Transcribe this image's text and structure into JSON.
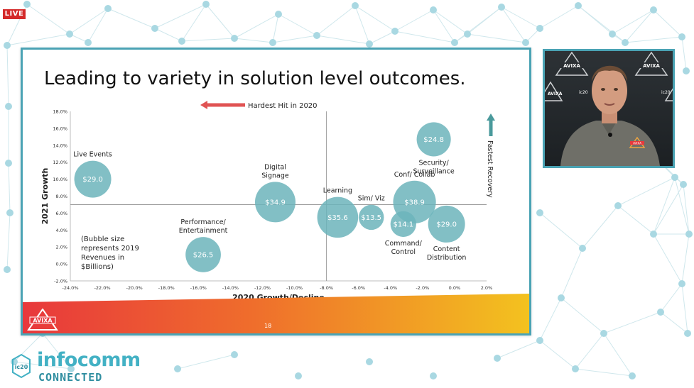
{
  "live_badge": "LIVE",
  "slide": {
    "title": "Leading to variety in solution level outcomes.",
    "page_number": "18",
    "footer_logo_text": "AVIXA"
  },
  "webcam": {
    "wall_logos": [
      "AVIXA",
      "ic20"
    ],
    "shirt_logo": "AVIXA"
  },
  "brand": {
    "badge": "ic20",
    "line1": "infocomm",
    "line2": "CONNECTED"
  },
  "colors": {
    "accent_teal": "#4aa3b4",
    "bubble": "#6cb4bb",
    "arrow_red": "#e05353",
    "arrow_teal": "#4a9a9c",
    "footer_red": "#e8383c",
    "footer_yellow": "#f3c21f",
    "live_red": "#d42a2a"
  },
  "chart_data": {
    "type": "bubble",
    "xlabel": "2020 Growth/Decline",
    "ylabel": "2021 Growth",
    "xlim": [
      -24,
      2
    ],
    "ylim": [
      -2,
      18
    ],
    "x_ticks": [
      "-24.0%",
      "-22.0%",
      "-20.0%",
      "-18.0%",
      "-16.0%",
      "-14.0%",
      "-12.0%",
      "-10.0%",
      "-8.0%",
      "-6.0%",
      "-4.0%",
      "-2.0%",
      "0.0%",
      "2.0%"
    ],
    "x_tick_values": [
      -24,
      -22,
      -20,
      -18,
      -16,
      -14,
      -12,
      -10,
      -8,
      -6,
      -4,
      -2,
      0,
      2
    ],
    "y_ticks": [
      "-2.0%",
      "0.0%",
      "2.0%",
      "4.0%",
      "6.0%",
      "8.0%",
      "10.0%",
      "12.0%",
      "14.0%",
      "16.0%",
      "18.0%"
    ],
    "y_tick_values": [
      -2,
      0,
      2,
      4,
      6,
      8,
      10,
      12,
      14,
      16,
      18
    ],
    "divider_x": -8,
    "divider_y": 7,
    "grid": false,
    "annotations": {
      "hardest_hit": "Hardest Hit in 2020",
      "fastest_recovery": "Fastest Recovery",
      "note": [
        "(Bubble size",
        "represents 2019",
        "Revenues in",
        "$Billions)"
      ]
    },
    "bubbles": [
      {
        "name": "Live Events",
        "label_lines": [
          "Live Events"
        ],
        "label_pos": "above",
        "x": -22.6,
        "y": 10.0,
        "value": 29.0,
        "value_label": "$29.0"
      },
      {
        "name": "Performance/ Entertainment",
        "label_lines": [
          "Performance/",
          "Entertainment"
        ],
        "label_pos": "above",
        "x": -15.7,
        "y": 1.1,
        "value": 26.5,
        "value_label": "$26.5"
      },
      {
        "name": "Digital Signage",
        "label_lines": [
          "Digital",
          "Signage"
        ],
        "label_pos": "above",
        "x": -11.2,
        "y": 7.3,
        "value": 34.9,
        "value_label": "$34.9"
      },
      {
        "name": "Learning",
        "label_lines": [
          "Learning"
        ],
        "label_pos": "above",
        "x": -7.3,
        "y": 5.5,
        "value": 35.6,
        "value_label": "$35.6"
      },
      {
        "name": "Sim/ Viz",
        "label_lines": [
          "Sim/ Viz"
        ],
        "label_pos": "above",
        "x": -5.2,
        "y": 5.5,
        "value": 13.5,
        "value_label": "$13.5"
      },
      {
        "name": "Conf/ Collab",
        "label_lines": [
          "Conf/ Collab"
        ],
        "label_pos": "above",
        "x": -2.5,
        "y": 7.3,
        "value": 38.9,
        "value_label": "$38.9"
      },
      {
        "name": "Command/ Control",
        "label_lines": [
          "Command/",
          "Control"
        ],
        "label_pos": "below",
        "x": -3.2,
        "y": 4.7,
        "value": 14.1,
        "value_label": "$14.1"
      },
      {
        "name": "Content Distribution",
        "label_lines": [
          "Content",
          "Distribution"
        ],
        "label_pos": "below",
        "x": -0.5,
        "y": 4.7,
        "value": 29.0,
        "value_label": "$29.0"
      },
      {
        "name": "Security/ Surveillance",
        "label_lines": [
          "Security/",
          "Surveillance"
        ],
        "label_pos": "below",
        "x": -1.3,
        "y": 14.7,
        "value": 24.8,
        "value_label": "$24.8"
      }
    ]
  }
}
